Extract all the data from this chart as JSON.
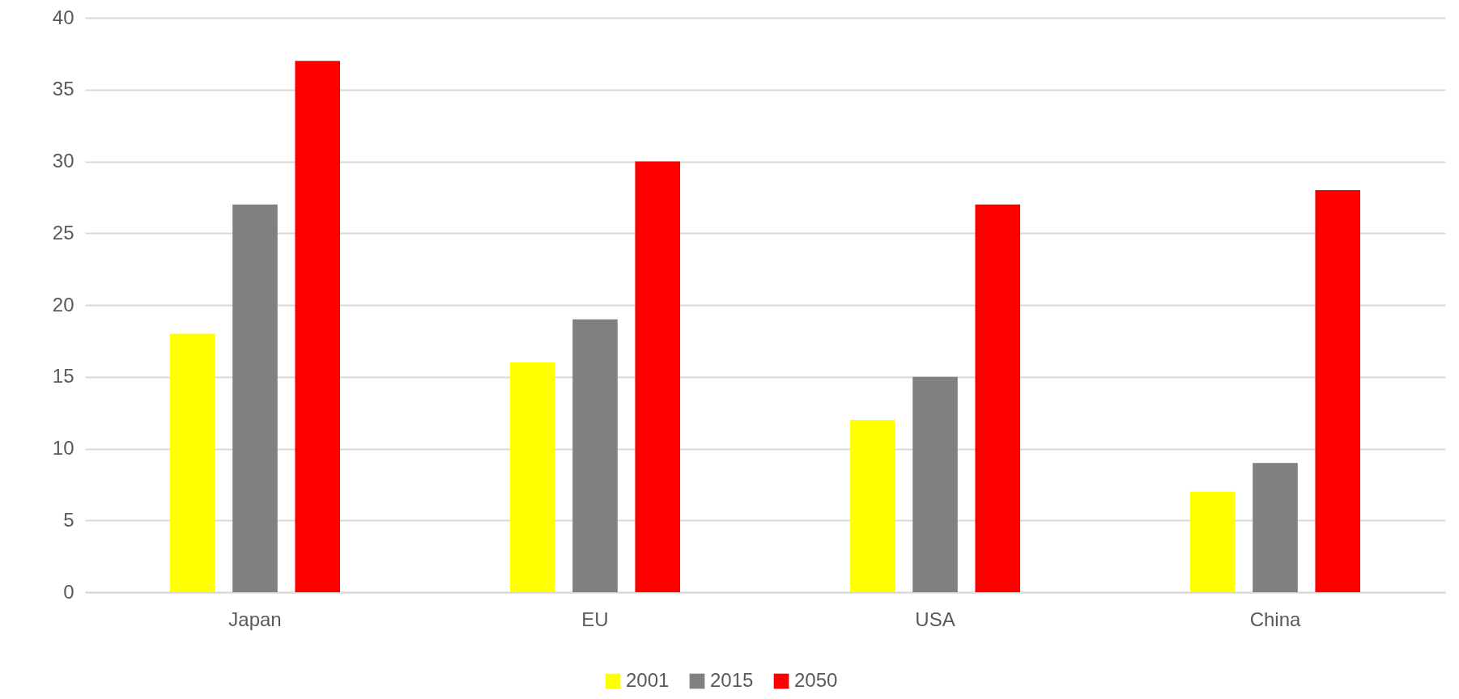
{
  "chart_data": {
    "type": "bar",
    "categories": [
      "Japan",
      "EU",
      "USA",
      "China"
    ],
    "series": [
      {
        "name": "2001",
        "color": "#ffff00",
        "values": [
          18,
          16,
          12,
          7
        ]
      },
      {
        "name": "2015",
        "color": "#808080",
        "values": [
          27,
          19,
          15,
          9
        ]
      },
      {
        "name": "2050",
        "color": "#ff0000",
        "values": [
          37,
          30,
          27,
          28
        ]
      }
    ],
    "ylim": [
      0,
      40
    ],
    "yticks": [
      0,
      5,
      10,
      15,
      20,
      25,
      30,
      35,
      40
    ],
    "grid": "y",
    "legend": "bottom"
  }
}
